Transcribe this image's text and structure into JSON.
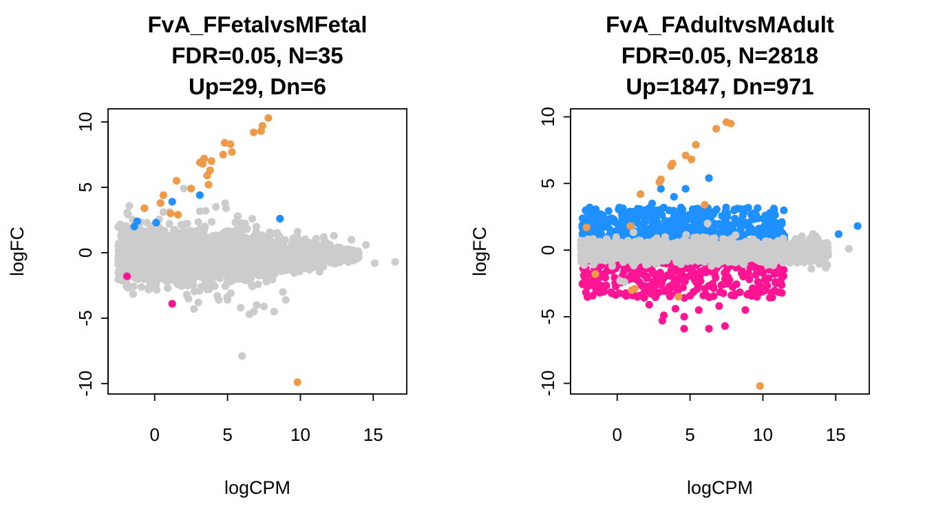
{
  "chart_data": [
    {
      "type": "scatter",
      "title_lines": [
        "FvA_FFetalvsMFetal",
        "FDR=0.05, N=35",
        "Up=29, Dn=6"
      ],
      "xlabel": "logCPM",
      "ylabel": "logFC",
      "xlim": [
        -3.2,
        17.3
      ],
      "ylim": [
        -10.8,
        11.0
      ],
      "xticks": [
        0,
        5,
        10,
        15
      ],
      "yticks": [
        -10,
        -5,
        0,
        5,
        10
      ],
      "grid": false,
      "colors": {
        "nonsig": "#cccccc",
        "up": "#1e90ff",
        "down": "#ff1493",
        "other": "#ee9a49"
      },
      "cloud": {
        "x_range": [
          -2.5,
          14
        ],
        "y_spread": 1.4,
        "count": 2200,
        "seed": 11
      },
      "series": [
        {
          "role": "nonsig",
          "points": [
            [
              1.0,
              3.1
            ],
            [
              2.0,
              4.9
            ],
            [
              3.5,
              3.2
            ],
            [
              4.2,
              3.5
            ],
            [
              4.9,
              3.4
            ],
            [
              5.7,
              2.8
            ],
            [
              6.7,
              2.6
            ],
            [
              9.8,
              1.6
            ],
            [
              11.6,
              1.2
            ],
            [
              12.3,
              1.3
            ],
            [
              13.5,
              1.0
            ],
            [
              14.5,
              0.6
            ],
            [
              15.1,
              -0.8
            ],
            [
              16.5,
              -0.7
            ],
            [
              6.0,
              -7.9
            ],
            [
              6.5,
              -4.7
            ],
            [
              7.0,
              -4.0
            ],
            [
              7.5,
              -4.1
            ],
            [
              8.2,
              -4.5
            ],
            [
              9.0,
              -3.6
            ],
            [
              4.4,
              -3.6
            ],
            [
              3.0,
              -3.8
            ],
            [
              2.7,
              -4.3
            ],
            [
              5.0,
              -3.6
            ],
            [
              5.9,
              -4.2
            ],
            [
              6.8,
              -4.5
            ],
            [
              8.8,
              -3.0
            ],
            [
              4.3,
              -3.3
            ],
            [
              2.2,
              -3.2
            ],
            [
              0.9,
              -2.7
            ]
          ]
        },
        {
          "role": "other",
          "points": [
            [
              7.8,
              10.3
            ],
            [
              7.4,
              9.7
            ],
            [
              7.3,
              9.3
            ],
            [
              6.8,
              9.2
            ],
            [
              4.8,
              8.4
            ],
            [
              5.2,
              8.3
            ],
            [
              5.3,
              7.7
            ],
            [
              4.7,
              7.5
            ],
            [
              3.4,
              7.2
            ],
            [
              3.3,
              6.8
            ],
            [
              3.9,
              7.0
            ],
            [
              3.1,
              6.9
            ],
            [
              3.8,
              6.3
            ],
            [
              3.6,
              5.9
            ],
            [
              3.7,
              5.2
            ],
            [
              2.5,
              4.9
            ],
            [
              1.5,
              5.5
            ],
            [
              0.6,
              4.4
            ],
            [
              0.4,
              3.8
            ],
            [
              1.1,
              3.0
            ],
            [
              1.6,
              2.9
            ],
            [
              -0.7,
              3.4
            ],
            [
              9.8,
              -9.9
            ]
          ]
        },
        {
          "role": "up",
          "points": [
            [
              1.2,
              3.9
            ],
            [
              3.1,
              4.4
            ],
            [
              8.6,
              2.6
            ],
            [
              -1.2,
              2.4
            ],
            [
              -1.4,
              2.0
            ],
            [
              0.1,
              2.3
            ]
          ]
        },
        {
          "role": "down",
          "points": [
            [
              1.2,
              -3.9
            ],
            [
              -1.9,
              -1.8
            ]
          ]
        }
      ]
    },
    {
      "type": "scatter",
      "title_lines": [
        "FvA_FAdultvsMAdult",
        "FDR=0.05, N=2818",
        "Up=1847, Dn=971"
      ],
      "xlabel": "logCPM",
      "ylabel": "logFC",
      "xlim": [
        -3.2,
        17.3
      ],
      "ylim": [
        -10.8,
        10.6
      ],
      "xticks": [
        0,
        5,
        10,
        15
      ],
      "yticks": [
        -10,
        -5,
        0,
        5,
        10
      ],
      "grid": false,
      "colors": {
        "nonsig": "#cccccc",
        "up": "#1e90ff",
        "down": "#ff1493",
        "other": "#ee9a49"
      },
      "band": {
        "up": {
          "x_range": [
            -2.4,
            11.5
          ],
          "y_range": [
            0.5,
            3.2
          ],
          "count": 650,
          "seed": 21
        },
        "down": {
          "x_range": [
            -2.4,
            11.5
          ],
          "y_range": [
            -3.6,
            -0.5
          ],
          "count": 450,
          "seed": 31
        },
        "center": {
          "x_range": [
            -2.5,
            14.5
          ],
          "y_spread": 0.9,
          "count": 1400,
          "seed": 41
        }
      },
      "series": [
        {
          "role": "up",
          "points": [
            [
              6.3,
              5.4
            ],
            [
              4.7,
              4.6
            ],
            [
              3.9,
              4.0
            ],
            [
              16.5,
              1.8
            ],
            [
              15.2,
              1.2
            ],
            [
              11.3,
              2.1
            ],
            [
              11.0,
              1.7
            ],
            [
              10.1,
              1.8
            ],
            [
              3.0,
              4.6
            ],
            [
              2.4,
              3.5
            ]
          ]
        },
        {
          "role": "down",
          "points": [
            [
              4.6,
              -5.9
            ],
            [
              6.3,
              -5.9
            ],
            [
              7.4,
              -5.7
            ],
            [
              3.1,
              -5.3
            ],
            [
              4.0,
              -4.4
            ],
            [
              5.6,
              -4.5
            ],
            [
              8.8,
              -4.5
            ],
            [
              3.2,
              -4.9
            ],
            [
              2.2,
              -4.1
            ],
            [
              4.6,
              -5.0
            ],
            [
              7.0,
              -4.2
            ],
            [
              10.8,
              -1.8
            ],
            [
              11.3,
              -1.8
            ]
          ]
        },
        {
          "role": "other",
          "points": [
            [
              7.5,
              9.6
            ],
            [
              7.8,
              9.5
            ],
            [
              6.8,
              9.1
            ],
            [
              5.4,
              7.9
            ],
            [
              4.7,
              7.1
            ],
            [
              5.1,
              6.8
            ],
            [
              3.8,
              6.5
            ],
            [
              3.7,
              6.3
            ],
            [
              3.0,
              5.3
            ],
            [
              2.9,
              5.1
            ],
            [
              1.6,
              4.2
            ],
            [
              6.0,
              3.4
            ],
            [
              0.9,
              1.8
            ],
            [
              -2.1,
              1.7
            ],
            [
              -1.5,
              -1.8
            ],
            [
              1.2,
              -2.9
            ],
            [
              1.0,
              -3.0
            ],
            [
              4.2,
              -3.5
            ],
            [
              9.8,
              -10.2
            ]
          ]
        },
        {
          "role": "nonsig",
          "points": [
            [
              15.9,
              0.1
            ],
            [
              13.6,
              -0.8
            ],
            [
              13.0,
              -0.6
            ],
            [
              12.1,
              -0.5
            ],
            [
              6.2,
              2.0
            ],
            [
              0.2,
              -2.3
            ],
            [
              0.5,
              -2.4
            ]
          ]
        }
      ]
    }
  ]
}
